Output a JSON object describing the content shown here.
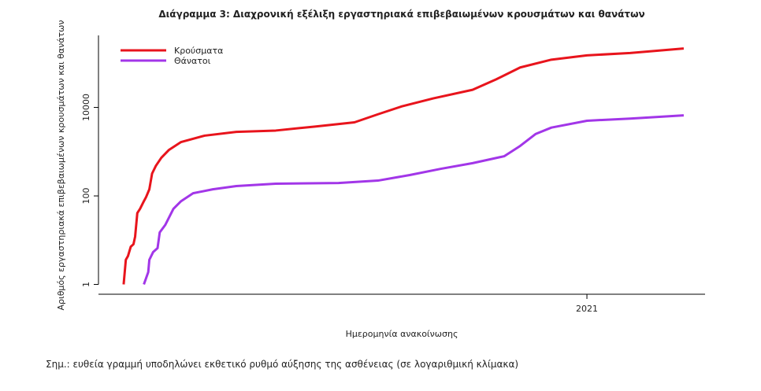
{
  "chart_data": {
    "type": "line",
    "title": "Διάγραμμα 3: Διαχρονική εξέλιξη εργαστηριακά επιβεβαιωμένων κρουσμάτων και θανάτων",
    "x_label": "Ημερομηνία ανακοίνωσης",
    "y_label": "Αριθμός εργαστηριακά επιβεβαιωμένων κρουσμάτων και θανάτων",
    "note": "Σημ.: ευθεία γραμμή υποδηλώνει εκθετικό ρυθμό αύξησης της ασθένειας (σε λογαριθμική κλίμακα)",
    "log_y": true,
    "legend": "top-left",
    "xlim": [
      2020.107,
      2021.216
    ],
    "xticks": [
      2021
    ],
    "ylim": [
      0.6,
      424000
    ],
    "yticks": [
      1,
      100,
      10000
    ],
    "series": [
      {
        "name": "Κρούσματα",
        "color": "#e8141c",
        "x": [
          2020.153,
          2020.157,
          2020.161,
          2020.166,
          2020.171,
          2020.174,
          2020.178,
          2020.183,
          2020.19,
          2020.194,
          2020.2,
          2020.205,
          2020.212,
          2020.222,
          2020.236,
          2020.258,
          2020.301,
          2020.359,
          2020.431,
          2020.503,
          2020.575,
          2020.618,
          2020.661,
          2020.719,
          2020.791,
          2020.834,
          2020.878,
          2020.935,
          2021.0,
          2021.079,
          2021.177
        ],
        "values": [
          1,
          3.6,
          4.4,
          7.1,
          8.1,
          12,
          41,
          51,
          76,
          94,
          141,
          320,
          480,
          730,
          1100,
          1650,
          2300,
          2800,
          3000,
          3700,
          4600,
          7000,
          10500,
          16000,
          25000,
          43000,
          80000,
          120000,
          150000,
          170000,
          215000
        ]
      },
      {
        "name": "Θάνατοι",
        "color": "#a236e8",
        "x": [
          2020.19,
          2020.198,
          2020.2,
          2020.207,
          2020.215,
          2020.219,
          2020.229,
          2020.244,
          2020.258,
          2020.28,
          2020.316,
          2020.359,
          2020.431,
          2020.546,
          2020.618,
          2020.676,
          2020.733,
          2020.791,
          2020.849,
          2020.878,
          2020.906,
          2020.935,
          2021.0,
          2021.079,
          2021.177
        ],
        "values": [
          1,
          1.9,
          3.6,
          5.4,
          6.6,
          15,
          22,
          51,
          76,
          115,
          141,
          167,
          189,
          196,
          222,
          296,
          410,
          550,
          790,
          1350,
          2500,
          3500,
          5000,
          5600,
          6600
        ]
      }
    ]
  }
}
